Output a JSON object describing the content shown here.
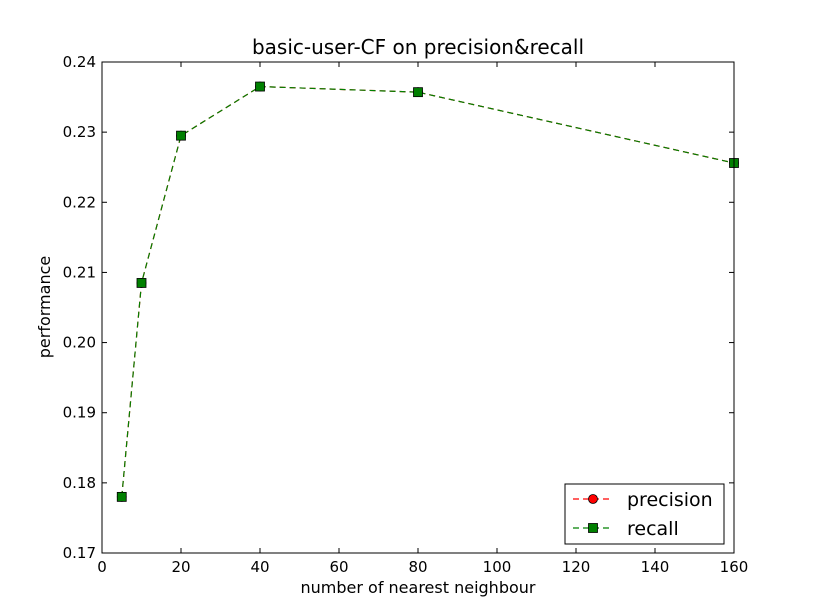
{
  "chart_data": {
    "type": "line",
    "title": "basic-user-CF on precision&recall",
    "xlabel": "number of nearest neighbour",
    "ylabel": "performance",
    "xlim": [
      0,
      160
    ],
    "ylim": [
      0.17,
      0.24
    ],
    "xticks": [
      0,
      20,
      40,
      60,
      80,
      100,
      120,
      140,
      160
    ],
    "xtick_labels": [
      "0",
      "20",
      "40",
      "60",
      "80",
      "100",
      "120",
      "140",
      "160"
    ],
    "yticks": [
      0.17,
      0.18,
      0.19,
      0.2,
      0.21,
      0.22,
      0.23,
      0.24
    ],
    "ytick_labels": [
      "0.17",
      "0.18",
      "0.19",
      "0.20",
      "0.21",
      "0.22",
      "0.23",
      "0.24"
    ],
    "grid": false,
    "legend_position": "lower-right",
    "series": [
      {
        "name": "precision",
        "color": "#ff0000",
        "marker": "circle",
        "line_style": "dashed",
        "x": [
          5,
          10,
          20,
          40,
          80,
          160
        ],
        "y": [
          0.178,
          0.2085,
          0.2295,
          0.2365,
          0.2357,
          0.2256
        ]
      },
      {
        "name": "recall",
        "color": "#008000",
        "marker": "square",
        "line_style": "dashed",
        "x": [
          5,
          10,
          20,
          40,
          80,
          160
        ],
        "y": [
          0.178,
          0.2085,
          0.2295,
          0.2365,
          0.2357,
          0.2256
        ]
      }
    ]
  }
}
